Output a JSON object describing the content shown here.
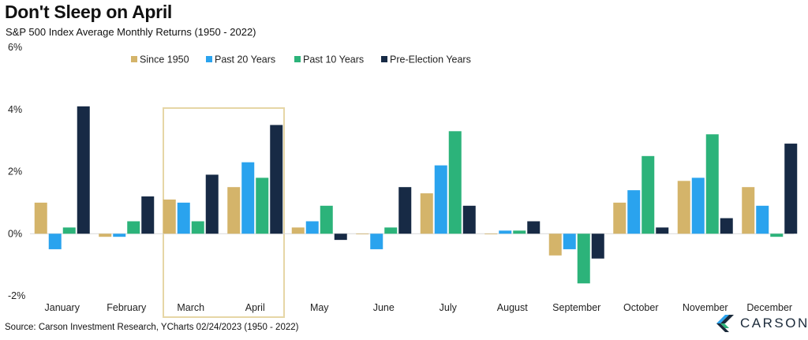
{
  "header": {
    "title": "Don't Sleep on April",
    "subtitle": "S&P 500 Index Average Monthly Returns (1950 - 2022)"
  },
  "footer": {
    "source": "Source: Carson Investment Research, YCharts 02/24/2023 (1950 - 2022)"
  },
  "logo": {
    "text": "CARSON",
    "icon": "carson-logo-icon"
  },
  "chart_data": {
    "type": "bar",
    "title": "Don't Sleep on April",
    "subtitle": "S&P 500 Index Average Monthly Returns (1950 - 2022)",
    "categories": [
      "January",
      "February",
      "March",
      "April",
      "May",
      "June",
      "July",
      "August",
      "September",
      "October",
      "November",
      "December"
    ],
    "series": [
      {
        "name": "Since 1950",
        "color": "#d4b46a",
        "values": [
          1.0,
          -0.1,
          1.1,
          1.5,
          0.2,
          0.0,
          1.3,
          0.0,
          -0.7,
          1.0,
          1.7,
          1.5
        ]
      },
      {
        "name": "Past 20 Years",
        "color": "#2aa3ee",
        "values": [
          -0.5,
          -0.1,
          1.0,
          2.3,
          0.4,
          -0.5,
          2.2,
          0.1,
          -0.5,
          1.4,
          1.8,
          0.9
        ]
      },
      {
        "name": "Past 10 Years",
        "color": "#2cb37a",
        "values": [
          0.2,
          0.4,
          0.4,
          1.8,
          0.9,
          0.2,
          3.3,
          0.1,
          -1.6,
          2.5,
          3.2,
          -0.1
        ]
      },
      {
        "name": "Pre-Election Years",
        "color": "#172a45",
        "values": [
          4.1,
          1.2,
          1.9,
          3.5,
          -0.2,
          1.5,
          0.9,
          0.4,
          -0.8,
          0.2,
          0.5,
          2.9
        ]
      }
    ],
    "ylim": [
      -2,
      6
    ],
    "yticks": [
      "-2%",
      "0%",
      "2%",
      "4%",
      "6%"
    ],
    "ytick_values": [
      -2,
      0,
      2,
      4,
      6
    ],
    "xlabel": "",
    "ylabel": "",
    "grid": false,
    "legend_position": "top",
    "highlight": {
      "categories": [
        "March",
        "April"
      ],
      "color": "#e6d6a6"
    }
  }
}
